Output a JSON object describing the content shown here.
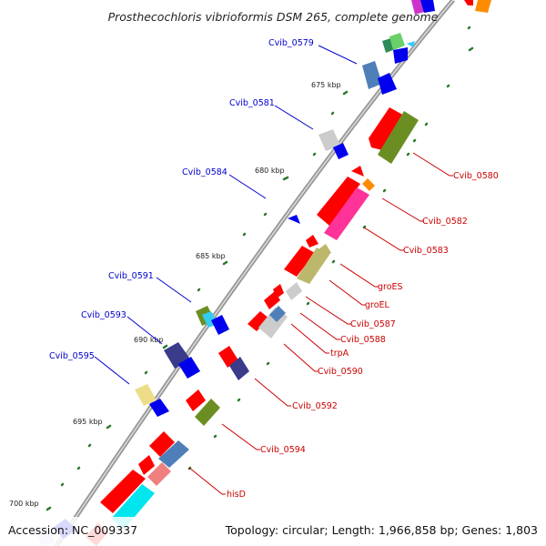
{
  "title": "Prosthecochloris vibrioformis DSM 265, complete genome",
  "accession": "Accession: NC_009337",
  "summary": "Topology: circular; Length: 1,966,858 bp; Genes: 1,803",
  "kbp_marks": [
    "675 kbp",
    "680 kbp",
    "685 kbp",
    "690 kbp",
    "695 kbp",
    "700 kbp"
  ],
  "forward_labels": [
    "Cvib_0579",
    "Cvib_0581",
    "Cvib_0584",
    "Cvib_0591",
    "Cvib_0593",
    "Cvib_0595"
  ],
  "reverse_labels": [
    "Cvib_0580",
    "Cvib_0582",
    "Cvib_0583",
    "groES",
    "groEL",
    "Cvib_0587",
    "Cvib_0588",
    "trpA",
    "Cvib_0590",
    "Cvib_0592",
    "Cvib_0594",
    "hisD"
  ],
  "colors": {
    "backbone": "#8a8a8a",
    "forward_label": "#0000cc",
    "reverse_label": "#cc0000",
    "tick": "#2a7a2a"
  }
}
